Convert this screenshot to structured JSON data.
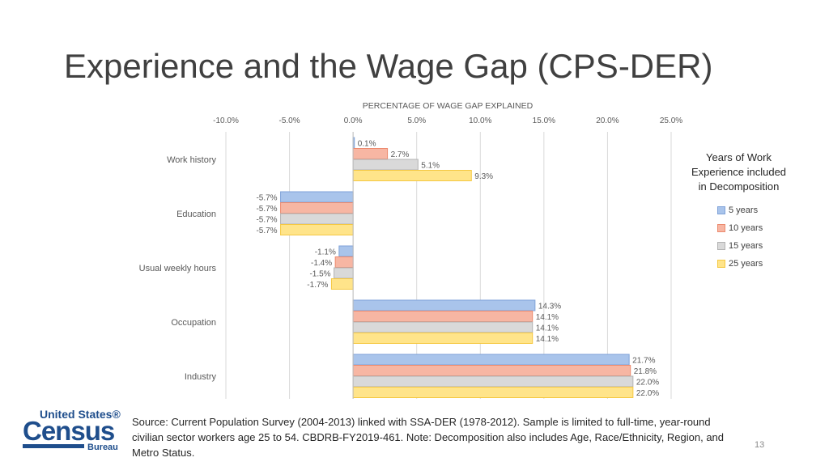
{
  "slide": {
    "title": "Experience and the Wage Gap (CPS-DER)",
    "footer": "Source: Current Population Survey (2004-2013) linked with SSA-DER (1978-2012). Sample is limited to full-time, year-round civilian sector workers age 25 to 54. CBDRB-FY2019-461. Note: Decomposition also includes Age, Race/Ethnicity, Region, and Metro Status.",
    "page_number": "13",
    "logo": {
      "line1": "United States®",
      "line2": "Census",
      "line3": "Bureau"
    }
  },
  "legend": {
    "title": "Years of Work Experience included in Decomposition"
  },
  "chart_data": {
    "type": "bar",
    "orientation": "horizontal",
    "title": "PERCENTAGE OF WAGE GAP EXPLAINED",
    "categories": [
      "Work history",
      "Education",
      "Usual weekly hours",
      "Occupation",
      "Industry"
    ],
    "xlim": [
      -10,
      25
    ],
    "xticks": [
      -10,
      -5,
      0,
      5,
      10,
      15,
      20,
      25
    ],
    "xtick_labels": [
      "-10.0%",
      "-5.0%",
      "0.0%",
      "5.0%",
      "10.0%",
      "15.0%",
      "20.0%",
      "25.0%"
    ],
    "grid": true,
    "legend_position": "right",
    "series": [
      {
        "name": "5 years",
        "color": "#a9c4eb",
        "border": "#7fa2d8",
        "values": [
          0.1,
          -5.7,
          -1.1,
          14.3,
          21.7
        ],
        "labels": [
          "0.1%",
          "-5.7%",
          "-1.1%",
          "14.3%",
          "21.7%"
        ]
      },
      {
        "name": "10 years",
        "color": "#f7b6a3",
        "border": "#ec8a6e",
        "values": [
          2.7,
          -5.7,
          -1.4,
          14.1,
          21.8
        ],
        "labels": [
          "2.7%",
          "-5.7%",
          "-1.4%",
          "14.1%",
          "21.8%"
        ]
      },
      {
        "name": "15 years",
        "color": "#d9d9d9",
        "border": "#b3b3b3",
        "values": [
          5.1,
          -5.7,
          -1.5,
          14.1,
          22.0
        ],
        "labels": [
          "5.1%",
          "-5.7%",
          "-1.5%",
          "14.1%",
          "22.0%"
        ]
      },
      {
        "name": "25 years",
        "color": "#ffe48a",
        "border": "#f5c842",
        "values": [
          9.3,
          -5.7,
          -1.7,
          14.1,
          22.0
        ],
        "labels": [
          "9.3%",
          "-5.7%",
          "-1.7%",
          "14.1%",
          "22.0%"
        ]
      }
    ]
  }
}
